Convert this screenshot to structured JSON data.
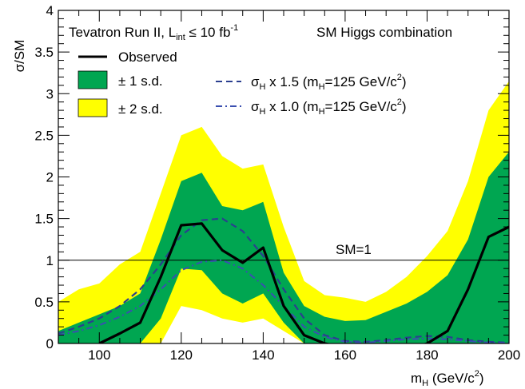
{
  "chart_data": {
    "type": "area",
    "title": "",
    "header_left": "Tevatron Run II, L",
    "header_left_sub": "int",
    "header_left_rest": " ≤ 10 fb",
    "header_left_sup": "-1",
    "header_right": "SM Higgs combination",
    "xlabel": "m",
    "xlabel_sub": "H",
    "xlabel_rest": " (GeV/c",
    "xlabel_sup": "2",
    "xlabel_end": ")",
    "ylabel": "σ/SM",
    "xlim": [
      90,
      200
    ],
    "ylim": [
      0,
      4
    ],
    "x_ticks": [
      "100",
      "120",
      "140",
      "160",
      "180",
      "200"
    ],
    "x_tick_values": [
      100,
      120,
      140,
      160,
      180,
      200
    ],
    "y_ticks": [
      "0",
      "0.5",
      "1",
      "1.5",
      "2",
      "2.5",
      "3",
      "3.5",
      "4"
    ],
    "y_tick_values": [
      0,
      0.5,
      1,
      1.5,
      2,
      2.5,
      3,
      3.5,
      4
    ],
    "annotation": "SM=1",
    "colors": {
      "band_2sd": "#ffff00",
      "band_1sd": "#00a651",
      "observed": "#000000",
      "sigma15": "#2b3f8f",
      "sigma10": "#3a4fb0"
    },
    "legend": {
      "observed": "Observed",
      "sd1": "± 1 s.d.",
      "sd2": "± 2 s.d.",
      "sigma15": "σ",
      "sigma15_sub": "H",
      "sigma15_rest": " x 1.5 (m",
      "sigma15_sub2": "H",
      "sigma15_rest2": "=125 GeV/c",
      "sigma15_sup": "2",
      "sigma15_end": ")",
      "sigma10": "σ",
      "sigma10_sub": "H",
      "sigma10_rest": " x 1.0 (m",
      "sigma10_sub2": "H",
      "sigma10_rest2": "=125 GeV/c",
      "sigma10_sup": "2",
      "sigma10_end": ")"
    },
    "x": [
      90,
      95,
      100,
      105,
      110,
      115,
      120,
      125,
      130,
      135,
      140,
      145,
      150,
      155,
      160,
      165,
      170,
      175,
      180,
      185,
      190,
      195,
      200
    ],
    "band_2sd_low": [
      0.0,
      0.0,
      0.0,
      0.0,
      0.0,
      0.0,
      0.45,
      0.4,
      0.3,
      0.25,
      0.3,
      0.15,
      0.0,
      0.0,
      0.0,
      0.0,
      0.0,
      0.0,
      0.0,
      0.0,
      0.0,
      0.0,
      0.0
    ],
    "band_2sd_high": [
      0.5,
      0.65,
      0.72,
      0.95,
      1.1,
      1.8,
      2.5,
      2.6,
      2.25,
      2.1,
      2.15,
      1.4,
      0.75,
      0.58,
      0.55,
      0.5,
      0.62,
      0.8,
      1.05,
      1.35,
      1.95,
      2.8,
      3.15
    ],
    "band_1sd_low": [
      0.0,
      0.0,
      0.0,
      0.0,
      0.0,
      0.3,
      0.9,
      0.88,
      0.6,
      0.48,
      0.6,
      0.25,
      0.0,
      0.0,
      0.0,
      0.0,
      0.0,
      0.0,
      0.0,
      0.0,
      0.0,
      0.0,
      0.0
    ],
    "band_1sd_high": [
      0.15,
      0.25,
      0.35,
      0.45,
      0.6,
      1.25,
      1.95,
      2.05,
      1.65,
      1.6,
      1.7,
      0.85,
      0.45,
      0.32,
      0.27,
      0.28,
      0.38,
      0.48,
      0.62,
      0.82,
      1.25,
      2.0,
      2.3
    ],
    "series": [
      {
        "name": "Observed",
        "x": [
          100,
          105,
          110,
          115,
          120,
          125,
          130,
          135,
          140,
          145,
          150,
          155,
          160,
          165,
          170,
          175,
          180,
          185,
          190,
          195,
          200
        ],
        "values": [
          0.0,
          0.12,
          0.25,
          0.8,
          1.42,
          1.44,
          1.12,
          0.97,
          1.15,
          0.45,
          0.1,
          0.0,
          -0.05,
          -0.1,
          -0.1,
          -0.08,
          0.0,
          0.15,
          0.65,
          1.28,
          1.4
        ]
      },
      {
        "name": "σH x 1.5 (mH=125 GeV/c2)",
        "x": [
          90,
          95,
          100,
          105,
          110,
          115,
          120,
          125,
          130,
          135,
          140,
          145,
          150,
          155,
          160,
          165,
          170,
          175,
          180,
          185,
          190,
          195,
          200
        ],
        "values": [
          0.12,
          0.2,
          0.3,
          0.45,
          0.65,
          0.95,
          1.3,
          1.48,
          1.5,
          1.35,
          1.05,
          0.65,
          0.3,
          0.1,
          0.03,
          0.02,
          0.04,
          0.07,
          0.09,
          0.08,
          0.04,
          0.02,
          0.01
        ]
      },
      {
        "name": "σH x 1.0 (mH=125 GeV/c2)",
        "x": [
          90,
          95,
          100,
          105,
          110,
          115,
          120,
          125,
          130,
          135,
          140,
          145,
          150,
          155,
          160,
          165,
          170,
          175,
          180,
          185,
          190,
          195,
          200
        ],
        "values": [
          0.1,
          0.15,
          0.22,
          0.32,
          0.45,
          0.65,
          0.88,
          0.98,
          1.0,
          0.9,
          0.7,
          0.45,
          0.2,
          0.08,
          0.02,
          0.01,
          0.03,
          0.05,
          0.06,
          0.05,
          0.03,
          0.01,
          0.01
        ]
      }
    ]
  }
}
